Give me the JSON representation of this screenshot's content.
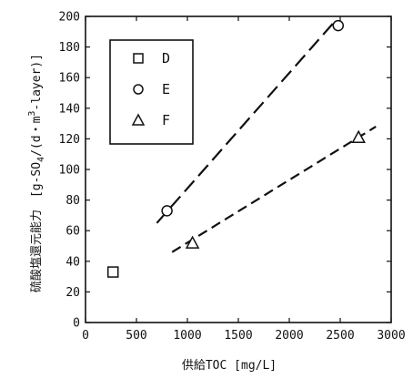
{
  "chart_data": {
    "type": "scatter",
    "xlabel": "供給TOC [mg/L]",
    "ylabel_prefix": "硫酸塩還元能力　[g-SO",
    "ylabel_sub": "4",
    "ylabel_mid": "/(d・m",
    "ylabel_sup": "3",
    "ylabel_suffix": "-layer)]",
    "xlim": [
      0,
      3000
    ],
    "ylim": [
      0,
      200
    ],
    "x_ticks": [
      0,
      500,
      1000,
      1500,
      2000,
      2500,
      3000
    ],
    "y_ticks": [
      0,
      20,
      40,
      60,
      80,
      100,
      120,
      140,
      160,
      180,
      200
    ],
    "grid": false,
    "legend_position": "top-left",
    "series": [
      {
        "name": "D",
        "marker": "square",
        "points": [
          [
            270,
            33
          ]
        ]
      },
      {
        "name": "E",
        "marker": "circle",
        "points": [
          [
            800,
            73
          ],
          [
            2480,
            194
          ]
        ]
      },
      {
        "name": "F",
        "marker": "triangle",
        "points": [
          [
            1050,
            52
          ],
          [
            2680,
            121
          ]
        ]
      }
    ],
    "trend_lines": [
      {
        "series": "E",
        "from": [
          700,
          65
        ],
        "to": [
          2450,
          197
        ]
      },
      {
        "series": "F",
        "from": [
          850,
          46
        ],
        "to": [
          2850,
          128
        ]
      }
    ]
  }
}
